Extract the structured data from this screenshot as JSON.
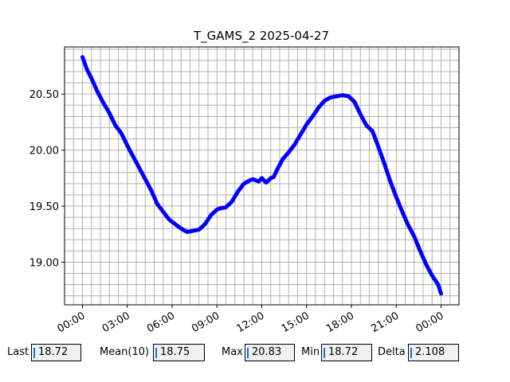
{
  "chart_data": {
    "type": "line",
    "title": "T_GAMS_2 2025-04-27",
    "xlabel": "",
    "ylabel": "",
    "x_tick_labels": [
      "00:00",
      "03:00",
      "06:00",
      "09:00",
      "12:00",
      "15:00",
      "18:00",
      "21:00",
      "00:00"
    ],
    "x_tick_hours": [
      0,
      3,
      6,
      9,
      12,
      15,
      18,
      21,
      24
    ],
    "y_tick_labels": [
      "19.00",
      "19.50",
      "20.00",
      "20.50"
    ],
    "y_tick_values": [
      19.0,
      19.5,
      20.0,
      20.5
    ],
    "xlim_hours": [
      -1.2,
      25.2
    ],
    "ylim": [
      18.62,
      20.92
    ],
    "grid": true,
    "series_color": "#0000ff",
    "series": [
      {
        "x_hours": [
          0.0,
          0.3,
          0.6,
          1.0,
          1.4,
          1.8,
          2.2,
          2.6,
          3.0,
          3.4,
          3.8,
          4.2,
          4.6,
          5.0,
          5.4,
          5.8,
          6.2,
          6.6,
          7.0,
          7.4,
          7.8,
          8.2,
          8.6,
          9.0,
          9.2,
          9.6,
          10.0,
          10.4,
          10.8,
          11.2,
          11.4,
          11.6,
          11.8,
          12.0,
          12.3,
          12.6,
          12.8,
          13.0,
          13.4,
          13.8,
          14.2,
          14.6,
          15.0,
          15.4,
          15.8,
          16.2,
          16.6,
          17.0,
          17.4,
          17.8,
          18.2,
          18.6,
          19.0,
          19.4,
          19.8,
          20.2,
          20.6,
          21.0,
          21.4,
          21.8,
          22.2,
          22.6,
          23.0,
          23.4,
          23.8,
          24.0
        ],
        "values": [
          20.83,
          20.72,
          20.64,
          20.52,
          20.42,
          20.33,
          20.22,
          20.15,
          20.04,
          19.94,
          19.84,
          19.74,
          19.64,
          19.52,
          19.45,
          19.38,
          19.34,
          19.3,
          19.27,
          19.28,
          19.29,
          19.34,
          19.42,
          19.47,
          19.48,
          19.49,
          19.54,
          19.63,
          19.7,
          19.73,
          19.74,
          19.73,
          19.72,
          19.75,
          19.71,
          19.75,
          19.76,
          19.82,
          19.92,
          19.98,
          20.05,
          20.14,
          20.23,
          20.3,
          20.38,
          20.44,
          20.47,
          20.48,
          20.49,
          20.48,
          20.43,
          20.32,
          20.22,
          20.17,
          20.03,
          19.88,
          19.72,
          19.58,
          19.45,
          19.33,
          19.23,
          19.1,
          18.98,
          18.88,
          18.8,
          18.72
        ]
      }
    ]
  },
  "stats": {
    "last_label": "Last",
    "last_value": "18.72",
    "mean_label": "Mean(10)",
    "mean_value": "18.75",
    "max_label": "Max",
    "max_value": "20.83",
    "min_label": "Min",
    "min_value": "18.72",
    "delta_label": "Delta",
    "delta_value": "2.108"
  }
}
